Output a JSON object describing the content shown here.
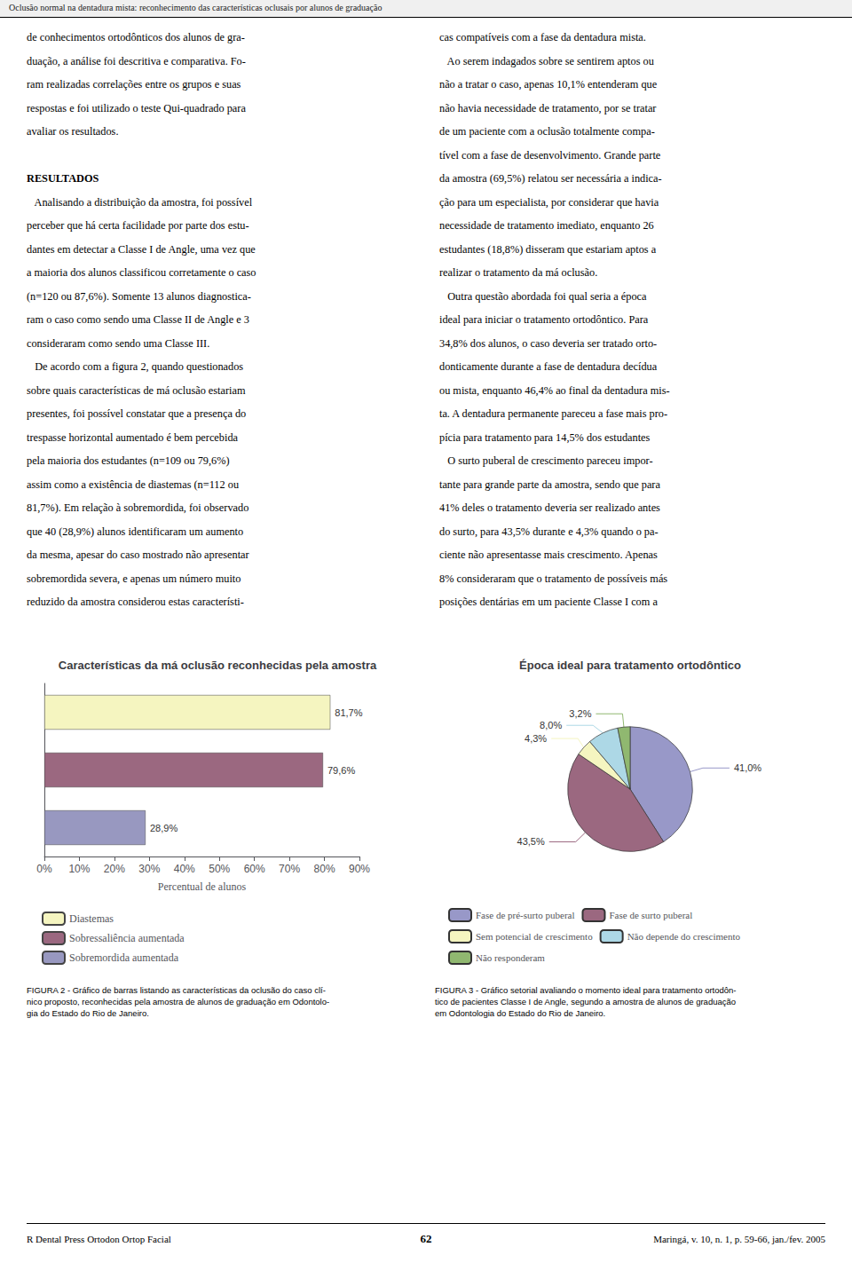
{
  "page_title": "Oclusão normal na dentadura mista: reconhecimento das características oclusais por alunos de graduação",
  "text_columns": [
    [
      [
        "de conhecimentos ortodônticos dos alunos de gra-",
        "duação, a análise foi descritiva e comparativa. Fo-",
        "ram realizadas correlações entre os grupos e suas",
        "respostas e foi utilizado o teste Qui-quadrado para",
        "avaliar os resultados."
      ],
      [
        "RESULTADOS",
        "   Analisando a distribuição da amostra, foi possível",
        "perceber que há certa facilidade por parte dos estu-",
        "dantes em detectar a Classe I de Angle, uma vez que",
        "a maioria dos alunos classificou corretamente o caso",
        "(n=120 ou 87,6%). Somente 13 alunos diagnostica-",
        "ram o caso como sendo uma Classe II de Angle e 3",
        "consideraram como sendo uma Classe III.",
        "   De acordo com a figura 2, quando questionados",
        "sobre quais características de má oclusão estariam",
        "presentes, foi possível constatar que a presença do",
        "trespasse horizontal aumentado é bem percebida",
        "pela maioria dos estudantes (n=109 ou 79,6%)",
        "assim como a existência de diastemas (n=112 ou",
        "81,7%). Em relação à sobremordida, foi observado",
        "que 40 (28,9%) alunos identificaram um aumento",
        "da mesma, apesar do caso mostrado não apresentar",
        "sobremordida severa, e apenas um número muito",
        "reduzido da amostra considerou estas característi-"
      ]
    ],
    [
      [
        "cas compatíveis com a fase da dentadura mista.",
        "   Ao serem indagados sobre se sentirem aptos ou",
        "não a tratar o caso, apenas 10,1% entenderam que",
        "não havia necessidade de tratamento, por se tratar",
        "de um paciente com a oclusão totalmente compa-",
        "tível com a fase de desenvolvimento. Grande parte",
        "da amostra (69,5%) relatou ser necessária a indica-",
        "ção para um especialista, por considerar que havia",
        "necessidade de tratamento imediato, enquanto 26",
        "estudantes (18,8%) disseram que estariam aptos a",
        "realizar o tratamento da má oclusão.",
        "   Outra questão abordada foi qual seria a época",
        "ideal para iniciar o tratamento ortodôntico. Para",
        "34,8% dos alunos, o caso deveria ser tratado orto-",
        "donticamente durante a fase de dentadura decídua",
        "ou mista, enquanto 46,4% ao final da dentadura mis-",
        "ta. A dentadura permanente pareceu a fase mais pro-",
        "pícia para tratamento para 14,5% dos estudantes",
        "   O surto puberal de crescimento pareceu impor-",
        "tante para grande parte da amostra, sendo que para",
        "41% deles o tratamento deveria ser realizado antes",
        "do surto, para 43,5% durante e 4,3% quando o pa-",
        "ciente não apresentasse mais crescimento. Apenas",
        "8% consideraram que o tratamento de possíveis más",
        "posições dentárias em um paciente Classe I com a"
      ]
    ]
  ],
  "captions": [
    "FIGURA 2 - Gráfico de barras listando as características da oclusão do caso clí-\nnico proposto, reconhecidas pela amostra de alunos de graduação em Odontolo-\ngia do Estado do Rio de Janeiro.",
    "FIGURA 3 - Gráfico setorial avaliando o momento ideal para tratamento ortodôn-\ntico de pacientes Classe I de Angle, segundo a amostra de alunos de graduação\nem Odontologia do Estado do Rio de Janeiro."
  ],
  "footer": [
    "R Dental Press Ortodon Ortop Facial",
    "62",
    "Maringá, v. 10, n. 1, p. 59-66, jan./fev. 2005"
  ],
  "chart_data": [
    {
      "type": "bar",
      "orientation": "horizontal",
      "title": "Características da má oclusão reconhecidas pela amostra",
      "categories": [
        "Diastemas",
        "Sobressaliência aumentada",
        "Sobremordida aumentada"
      ],
      "values": [
        81.7,
        79.6,
        28.9
      ],
      "value_labels": [
        "81,7%",
        "79,6%",
        "28,9%"
      ],
      "colors": [
        "#f5f5c0",
        "#9b6880",
        "#9898c0"
      ],
      "xlabel": "Percentual de alunos",
      "xlim": [
        0,
        90
      ],
      "xticks": [
        {
          "value": 0,
          "label": "0%"
        },
        {
          "value": 10,
          "label": "10%"
        },
        {
          "value": 20,
          "label": "20%"
        },
        {
          "value": 30,
          "label": "30%"
        },
        {
          "value": 40,
          "label": "40%"
        },
        {
          "value": 50,
          "label": "50%"
        },
        {
          "value": 60,
          "label": "60%"
        },
        {
          "value": 70,
          "label": "70%"
        },
        {
          "value": 80,
          "label": "80%"
        },
        {
          "value": 90,
          "label": "90%"
        }
      ],
      "tick_labels": "x",
      "data_labels": true,
      "grid": false,
      "legend": "bottom"
    },
    {
      "type": "pie",
      "title": "Época ideal para tratamento ortodôntico",
      "categories": [
        "Fase de pré-surto puberal",
        "Fase de surto puberal",
        "Sem potencial de crescimento",
        "Não depende do crescimento",
        "Não responderam"
      ],
      "values": [
        41.0,
        43.5,
        4.3,
        8.0,
        3.2
      ],
      "value_labels": [
        "41,0%",
        "43,5%",
        "4,3%",
        "8,0%",
        "3,2%"
      ],
      "colors": [
        "#9898c8",
        "#9b6880",
        "#f5f5c0",
        "#add8e6",
        "#90b870"
      ],
      "data_labels": true,
      "legend": "bottom"
    }
  ]
}
